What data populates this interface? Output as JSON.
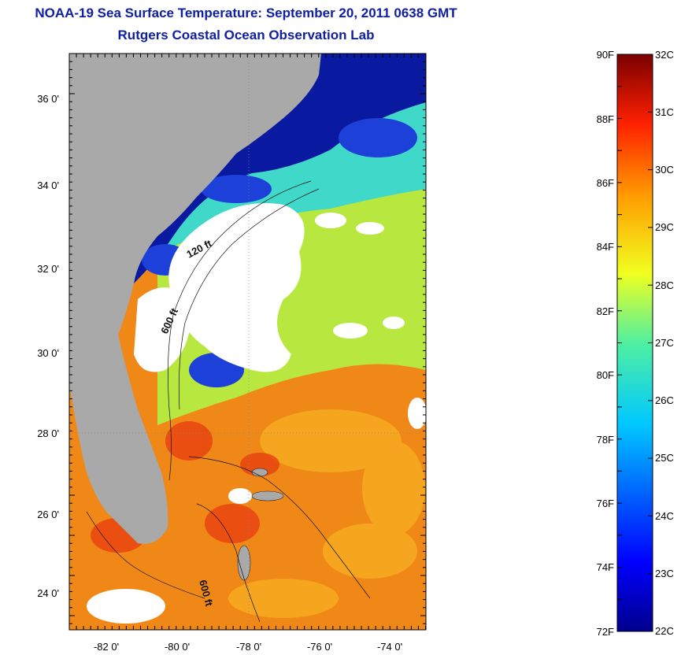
{
  "header": {
    "title": "NOAA-19 Sea Surface Temperature:  September 20, 2011 0638 GMT",
    "subtitle": "Rutgers Coastal Ocean Observation Lab"
  },
  "map": {
    "lat_labels": [
      "24 0'",
      "26 0'",
      "28 0'",
      "30 0'",
      "32 0'",
      "34 0'",
      "36 0'"
    ],
    "lon_labels": [
      "-82 0'",
      "-80 0'",
      "-78 0'",
      "-76 0'",
      "-74 0'"
    ],
    "isobath_labels": [
      "120 ft",
      "600 ft",
      "600 ft"
    ],
    "colors": {
      "land": "#a9a9a9",
      "cloud": "#ffffff",
      "cold": "#0a1aa0",
      "warm": "#f07a10"
    }
  },
  "colorbar": {
    "f_labels": [
      "90F",
      "88F",
      "86F",
      "84F",
      "82F",
      "80F",
      "78F",
      "76F",
      "74F",
      "72F"
    ],
    "c_labels": [
      "32C",
      "31C",
      "30C",
      "29C",
      "28C",
      "27C",
      "26C",
      "25C",
      "24C",
      "23C",
      "22C"
    ],
    "range_c": [
      22,
      32
    ],
    "range_f": [
      72,
      90
    ]
  }
}
